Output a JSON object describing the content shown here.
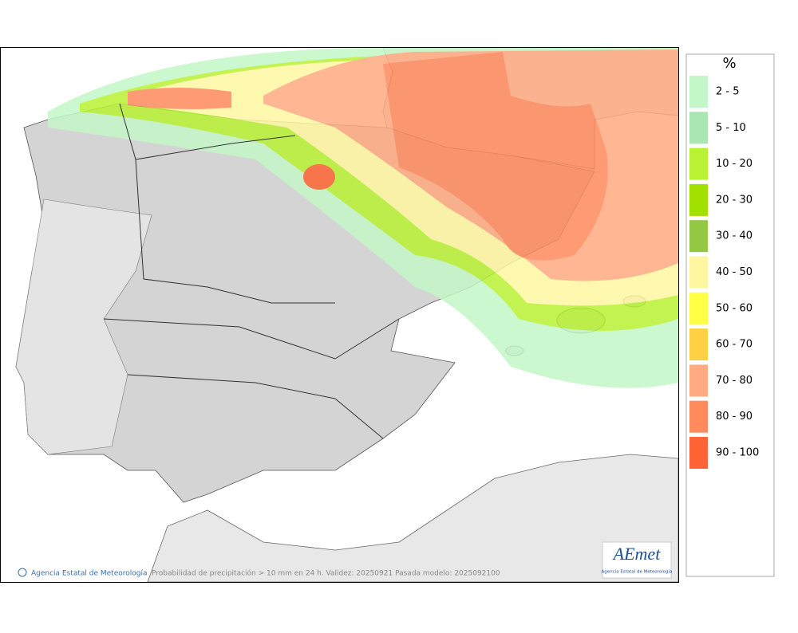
{
  "map": {
    "credit": "Agencia Estatal de Meteorología",
    "caption": "Probabilidad de precipitación > 10 mm en 24 h. Validez: 20250921 Pasada modelo: 2025092100",
    "logo": {
      "name": "AEmet",
      "subtitle": "Agencia Estatal de Meteorología"
    }
  },
  "legend": {
    "title": "%",
    "items": [
      {
        "label": "2 - 5",
        "color": "#c4f7c8"
      },
      {
        "label": "5 - 10",
        "color": "#a9e6b2"
      },
      {
        "label": "10 - 20",
        "color": "#b9f232"
      },
      {
        "label": "20 - 30",
        "color": "#a2e000"
      },
      {
        "label": "30 - 40",
        "color": "#93c845"
      },
      {
        "label": "40 - 50",
        "color": "#fff7a0"
      },
      {
        "label": "50 - 60",
        "color": "#ffff44"
      },
      {
        "label": "60 - 70",
        "color": "#ffd044"
      },
      {
        "label": "70 - 80",
        "color": "#ffaa80"
      },
      {
        "label": "80 - 90",
        "color": "#ff8a5c"
      },
      {
        "label": "90 - 100",
        "color": "#ff6434"
      }
    ]
  }
}
